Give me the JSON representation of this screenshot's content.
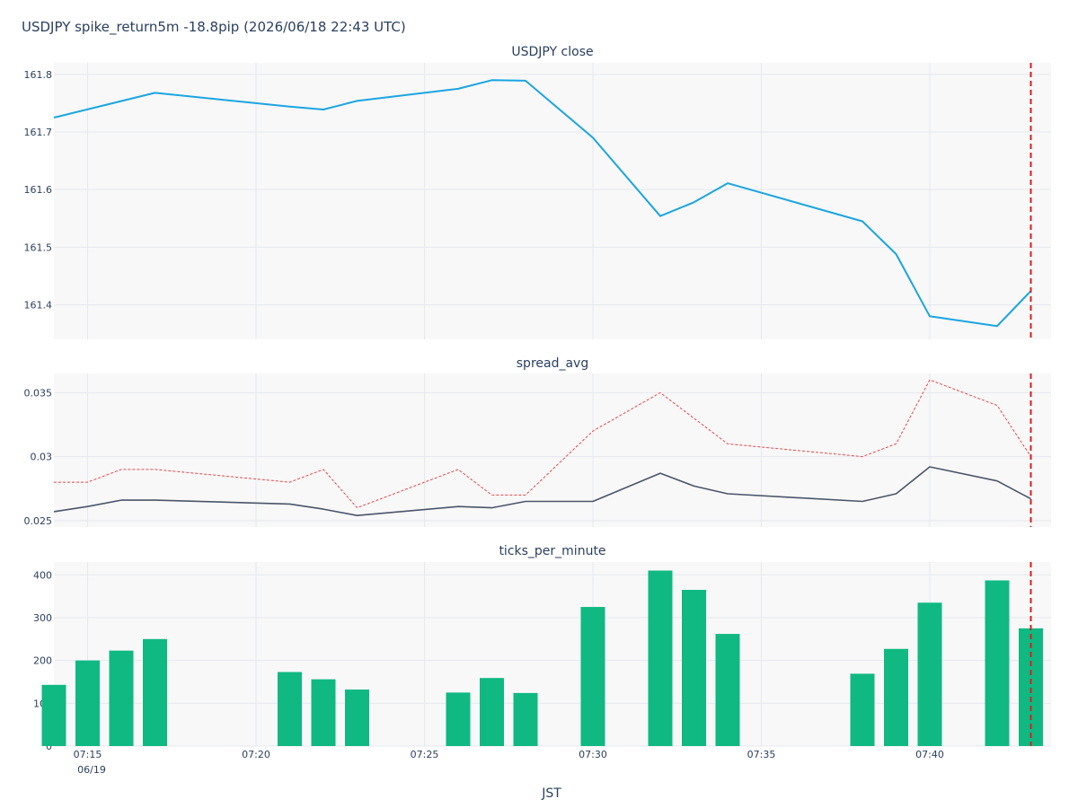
{
  "figure": {
    "title": "USDJPY spike_return5m -18.8pip (2026/06/18 22:43 UTC)",
    "xlabel": "JST",
    "date_label": "06/19"
  },
  "colors": {
    "plot_bg": "#f8f8f9",
    "grid": "#e6e8ee",
    "close_line": "#1ba5e0",
    "spread_line": "#4a5568",
    "spread_dotted": "#ef4444",
    "bars": "#10b981",
    "marker": "#d91e1e"
  },
  "chart_data": [
    {
      "type": "line",
      "title": "USDJPY close",
      "ylim": [
        161.34,
        161.82
      ],
      "yticks": [
        "161.4",
        "161.5",
        "161.6",
        "161.7",
        "161.8"
      ],
      "x": [
        "07:14",
        "07:17",
        "07:21",
        "07:22",
        "07:23",
        "07:26",
        "07:27",
        "07:28",
        "07:30",
        "07:32",
        "07:33",
        "07:34",
        "07:38",
        "07:39",
        "07:40",
        "07:42",
        "07:43"
      ],
      "series": [
        {
          "values": [
            161.725,
            161.768,
            161.744,
            161.739,
            161.754,
            161.775,
            161.79,
            161.789,
            161.69,
            161.554,
            161.578,
            161.611,
            161.545,
            161.488,
            161.38,
            161.363,
            161.424
          ]
        }
      ]
    },
    {
      "type": "line",
      "title": "spread_avg",
      "ylim": [
        0.0245,
        0.0365
      ],
      "yticks": [
        "0.025",
        "0.03",
        "0.035"
      ],
      "x": [
        "07:14",
        "07:15",
        "07:16",
        "07:17",
        "07:21",
        "07:22",
        "07:23",
        "07:26",
        "07:27",
        "07:28",
        "07:30",
        "07:32",
        "07:33",
        "07:34",
        "07:38",
        "07:39",
        "07:40",
        "07:42",
        "07:43"
      ],
      "series": [
        {
          "style": "solid",
          "values": [
            0.0257,
            0.0261,
            0.0266,
            0.0266,
            0.0263,
            0.0259,
            0.0254,
            0.0261,
            0.026,
            0.0265,
            0.0265,
            0.0287,
            0.0277,
            0.0271,
            0.0265,
            0.0271,
            0.0292,
            0.0281,
            0.0267
          ]
        },
        {
          "style": "dotted",
          "values": [
            0.028,
            0.028,
            0.029,
            0.029,
            0.028,
            0.029,
            0.026,
            0.029,
            0.027,
            0.027,
            0.032,
            0.035,
            0.033,
            0.031,
            0.03,
            0.031,
            0.036,
            0.034,
            0.03
          ]
        }
      ]
    },
    {
      "type": "bar",
      "title": "ticks_per_minute",
      "ylim": [
        0,
        430
      ],
      "yticks": [
        "0",
        "100",
        "200",
        "300",
        "400"
      ],
      "categories": [
        "07:14",
        "07:15",
        "07:16",
        "07:17",
        "07:21",
        "07:22",
        "07:23",
        "07:26",
        "07:27",
        "07:28",
        "07:30",
        "07:32",
        "07:33",
        "07:34",
        "07:38",
        "07:39",
        "07:40",
        "07:42",
        "07:43"
      ],
      "values": [
        143,
        200,
        223,
        250,
        173,
        156,
        132,
        125,
        159,
        124,
        325,
        410,
        365,
        262,
        169,
        227,
        335,
        387,
        275
      ]
    }
  ],
  "x_axis": {
    "start": "07:14",
    "end": "07:43.6",
    "marker_time": "07:43",
    "ticks": [
      "07:15",
      "07:20",
      "07:25",
      "07:30",
      "07:35",
      "07:40"
    ]
  }
}
